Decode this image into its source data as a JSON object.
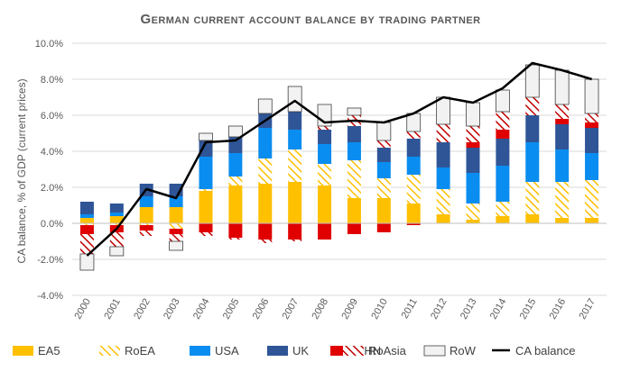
{
  "chart_data": {
    "type": "bar",
    "title": "German current account balance by trading partner",
    "ylabel": "CA balance, % of GDP (current prices)",
    "xlabel": "",
    "ylim": [
      -4.0,
      10.0
    ],
    "y_ticks": [
      "-4.0%",
      "-2.0%",
      "0.0%",
      "2.0%",
      "4.0%",
      "6.0%",
      "8.0%",
      "10.0%"
    ],
    "grid": true,
    "legend_position": "bottom",
    "categories": [
      "2000",
      "2001",
      "2002",
      "2003",
      "2004",
      "2005",
      "2006",
      "2007",
      "2008",
      "2009",
      "2010",
      "2011",
      "2012",
      "2013",
      "2014",
      "2015",
      "2016",
      "2017"
    ],
    "series": [
      {
        "name": "EA5",
        "color": "#FFC000",
        "pattern": "solid",
        "values": [
          0.3,
          0.4,
          0.9,
          0.9,
          1.8,
          2.1,
          2.2,
          2.3,
          2.1,
          1.4,
          1.4,
          1.1,
          0.5,
          0.2,
          0.4,
          0.5,
          0.3,
          0.3
        ]
      },
      {
        "name": "RoEA",
        "color": "#FFC000",
        "pattern": "hatch-yellow",
        "values": [
          -0.1,
          -0.1,
          -0.1,
          -0.3,
          0.1,
          0.5,
          1.4,
          1.8,
          1.2,
          2.1,
          1.1,
          1.6,
          1.4,
          0.9,
          0.8,
          1.8,
          2.0,
          2.1
        ]
      },
      {
        "name": "USA",
        "color": "#0A8DF0",
        "pattern": "solid",
        "values": [
          0.2,
          0.2,
          0.6,
          0.6,
          1.8,
          1.3,
          1.7,
          1.1,
          1.1,
          1.0,
          0.9,
          1.0,
          1.2,
          1.7,
          2.0,
          2.2,
          1.8,
          1.5
        ]
      },
      {
        "name": "UK",
        "color": "#2F5597",
        "pattern": "solid",
        "values": [
          0.7,
          0.5,
          0.7,
          0.7,
          0.9,
          0.9,
          0.8,
          1.0,
          0.8,
          0.9,
          0.8,
          1.0,
          1.4,
          1.4,
          1.5,
          1.5,
          1.4,
          1.4
        ]
      },
      {
        "name": "CHN",
        "color": "#E00000",
        "pattern": "solid",
        "values": [
          -0.5,
          -0.4,
          -0.3,
          -0.3,
          -0.5,
          -0.8,
          -0.9,
          -0.9,
          -0.9,
          -0.6,
          -0.5,
          -0.1,
          0.0,
          0.3,
          0.5,
          0.0,
          0.3,
          0.3
        ]
      },
      {
        "name": "RoAsia",
        "color": "#C00000",
        "pattern": "hatch-red",
        "values": [
          -1.1,
          -0.8,
          -0.3,
          -0.4,
          -0.2,
          -0.1,
          -0.2,
          -0.1,
          0.2,
          0.6,
          0.4,
          0.4,
          1.0,
          0.9,
          1.0,
          1.0,
          0.8,
          0.5
        ]
      },
      {
        "name": "RoW",
        "color": "#F2F2F2",
        "pattern": "solid",
        "values": [
          -0.9,
          -0.5,
          0.0,
          -0.5,
          0.4,
          0.6,
          0.8,
          1.4,
          1.2,
          0.4,
          1.0,
          1.0,
          1.5,
          1.3,
          1.2,
          1.8,
          1.9,
          1.9
        ]
      }
    ],
    "line": {
      "name": "CA balance",
      "color": "#000000",
      "values": [
        -1.8,
        -0.3,
        1.9,
        1.4,
        4.5,
        4.6,
        5.7,
        6.8,
        5.6,
        5.7,
        5.6,
        6.1,
        7.0,
        6.7,
        7.5,
        8.9,
        8.5,
        8.0
      ]
    }
  }
}
